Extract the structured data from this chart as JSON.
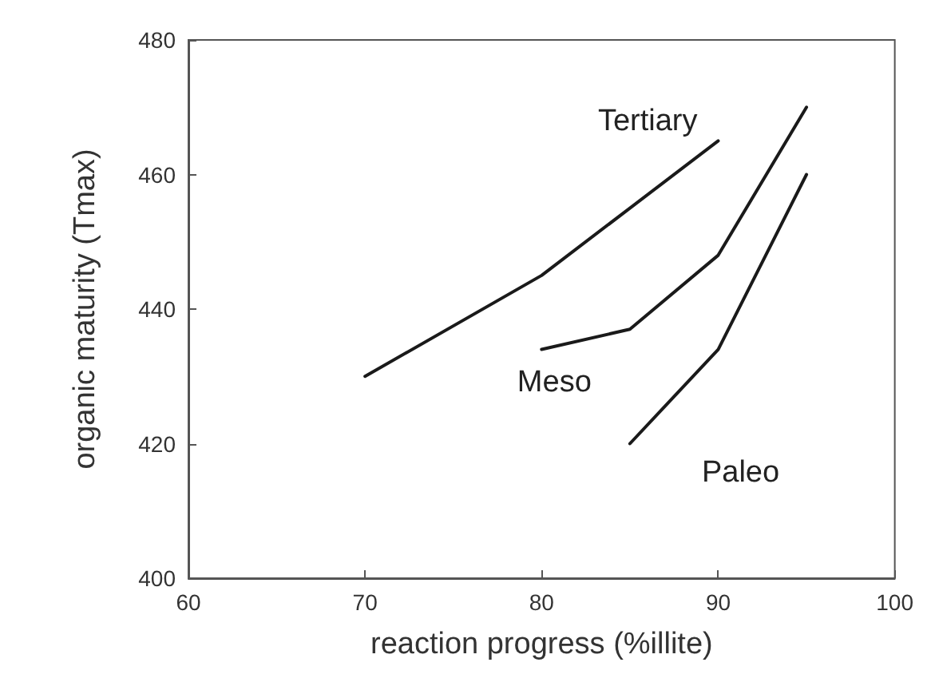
{
  "chart_data": {
    "type": "line",
    "xlabel": "reaction progress (%illite)",
    "ylabel": "organic maturity (Tmax)",
    "xlim": [
      60,
      100
    ],
    "xticks": [
      60,
      70,
      80,
      90,
      100
    ],
    "ylim": [
      400,
      480
    ],
    "yticks": [
      400,
      420,
      440,
      460,
      480
    ],
    "grid": false,
    "legend": false,
    "marker": "none",
    "line_style": "solid",
    "series": [
      {
        "name": "Tertiary",
        "color": "#1a1a1a",
        "x": [
          70,
          80,
          90
        ],
        "values": [
          430,
          445,
          465
        ]
      },
      {
        "name": "Meso",
        "color": "#1a1a1a",
        "x": [
          80,
          85,
          90,
          95
        ],
        "values": [
          434,
          437,
          448,
          470
        ]
      },
      {
        "name": "Paleo",
        "color": "#1a1a1a",
        "x": [
          85,
          90,
          95
        ],
        "values": [
          420,
          434,
          460
        ]
      }
    ]
  }
}
